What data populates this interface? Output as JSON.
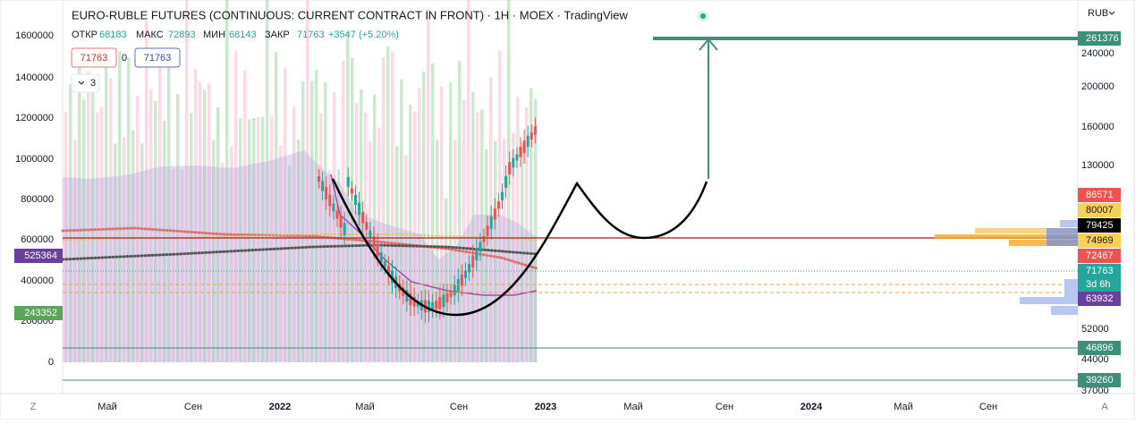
{
  "header": {
    "title": "EURO-RUBLE FUTURES (CONTINUOUS: CURRENT CONTRACT IN FRONT) · 1H · MOEX · TradingView",
    "currency": "RUB"
  },
  "legend": {
    "open_label": "ОТКР",
    "open": "68183",
    "high_label": "МАКС",
    "high": "72893",
    "low_label": "МИН",
    "low": "68143",
    "close_label": "ЗАКР",
    "close": "71763",
    "change": "+3547 (+5.20%)"
  },
  "order_buttons": {
    "sell": "71763",
    "spread": "0",
    "buy": "71763"
  },
  "indicators_toggle": "3",
  "volume_axis": [
    "1600000",
    "1400000",
    "1200000",
    "1000000",
    "800000",
    "600000",
    "400000",
    "200000",
    "0"
  ],
  "price_axis": [
    "240000",
    "200000",
    "160000",
    "130000",
    "52000",
    "44000",
    "37000"
  ],
  "price_badges": [
    "261376",
    "86571",
    "80007",
    "79425",
    "74969",
    "72467",
    "71763",
    "3d 6h",
    "63932",
    "46896",
    "39260"
  ],
  "left_badges": [
    "525364",
    "243352"
  ],
  "time_axis": [
    "Май",
    "Сен",
    "2022",
    "Май",
    "Сен",
    "2023",
    "Май",
    "Сен",
    "2024",
    "Май",
    "Сен"
  ],
  "corner_left": "Z",
  "corner_right": "A"
}
